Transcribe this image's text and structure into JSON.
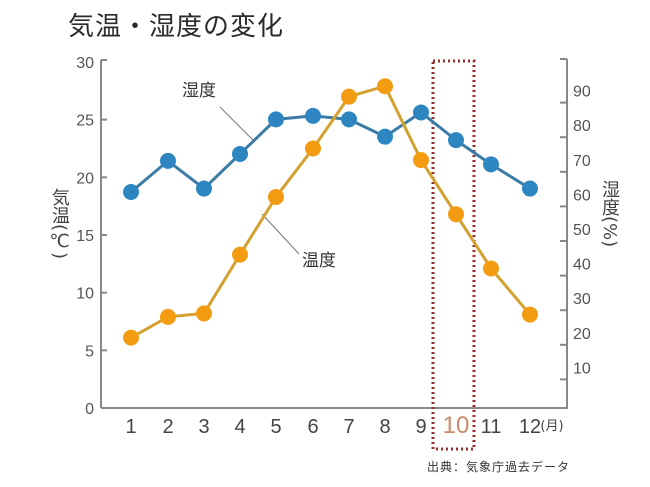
{
  "title": "気温・湿度の変化",
  "source": "出典：気象庁過去データ",
  "axes": {
    "left_title": "気温(℃)",
    "right_title": "湿度(%)",
    "x_unit": "(月)",
    "left_ticks": [
      "0",
      "5",
      "10",
      "15",
      "20",
      "25",
      "30"
    ],
    "right_ticks": [
      "10",
      "20",
      "30",
      "40",
      "50",
      "60",
      "70",
      "80",
      "90"
    ]
  },
  "callouts": {
    "humidity": "湿度",
    "temperature": "温度"
  },
  "highlight": {
    "month": "10",
    "color": "#9b2b2b",
    "label_color": "#c98a6a"
  },
  "colors": {
    "temperature": "#f39c12",
    "temperature_line": "#d4a030",
    "humidity": "#2e86c1",
    "humidity_line": "#3a7ca5",
    "axis": "#888888"
  },
  "chart_data": {
    "type": "line",
    "title": "気温・湿度の変化",
    "xlabel": "(月)",
    "ylabel": "気温(℃)",
    "y2label": "湿度(%)",
    "categories": [
      "1",
      "2",
      "3",
      "4",
      "5",
      "6",
      "7",
      "8",
      "9",
      "10",
      "11",
      "12"
    ],
    "series": [
      {
        "name": "温度",
        "axis": "left",
        "unit": "℃",
        "values": [
          6.1,
          7.9,
          8.2,
          13.3,
          18.3,
          22.5,
          27.0,
          27.9,
          21.5,
          16.8,
          12.1,
          8.1
        ]
      },
      {
        "name": "湿度",
        "axis": "right",
        "unit": "%",
        "values": [
          63,
          72,
          64,
          74,
          84,
          85,
          84,
          79,
          86,
          78,
          71,
          64
        ]
      }
    ],
    "ylim": [
      0,
      30
    ],
    "y2lim": [
      0,
      100
    ],
    "grid": false,
    "legend": "inline callouts",
    "annotations": [
      "Month 10 highlighted with dotted red box"
    ]
  }
}
